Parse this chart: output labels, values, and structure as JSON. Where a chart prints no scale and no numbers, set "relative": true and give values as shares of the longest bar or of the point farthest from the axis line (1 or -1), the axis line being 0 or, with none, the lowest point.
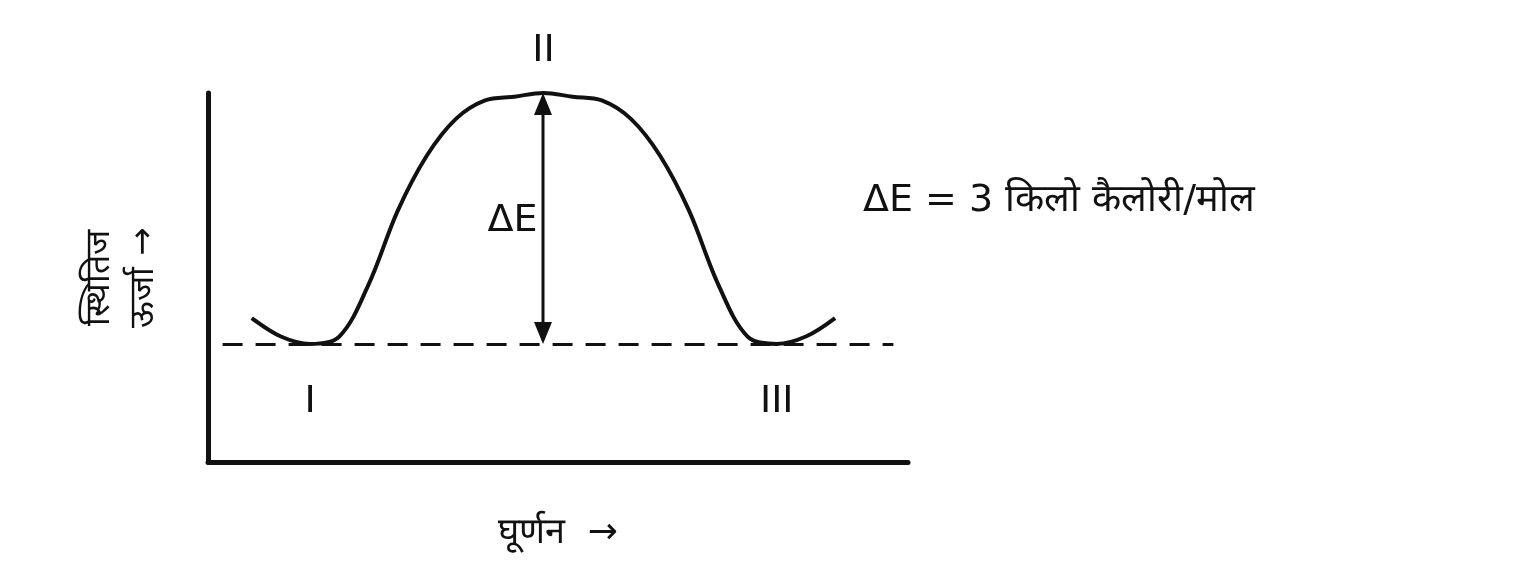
{
  "chart_data": {
    "type": "line",
    "relative": true,
    "xlabel": "घूर्णन  →",
    "ylabel": "स्थितिज\nऊर्जा →",
    "categories": [
      null,
      null,
      null,
      null,
      null,
      null,
      null,
      null,
      null,
      null,
      null,
      null,
      null,
      null,
      null,
      null,
      null,
      null,
      null,
      null,
      null,
      null,
      null,
      null
    ],
    "series": [
      {
        "color": "#111111",
        "values": [
          null,
          0.39,
          0.34,
          0.32,
          0.34,
          0.48,
          0.68,
          0.83,
          0.93,
          0.98,
          0.99,
          1,
          0.99,
          0.98,
          0.93,
          0.83,
          0.68,
          0.48,
          0.34,
          0.32,
          0.34,
          0.39,
          null,
          null
        ]
      }
    ],
    "ref_lines": [
      {
        "axis": "y",
        "value": 0.32,
        "line_style": "dashed",
        "color": "#111111"
      }
    ],
    "annotations": [
      "I",
      "II",
      "III",
      "ΔE",
      "ΔE = 3 किलो कैलोरी/मोल"
    ],
    "grid": false,
    "marker": "none",
    "line_style": "solid"
  }
}
